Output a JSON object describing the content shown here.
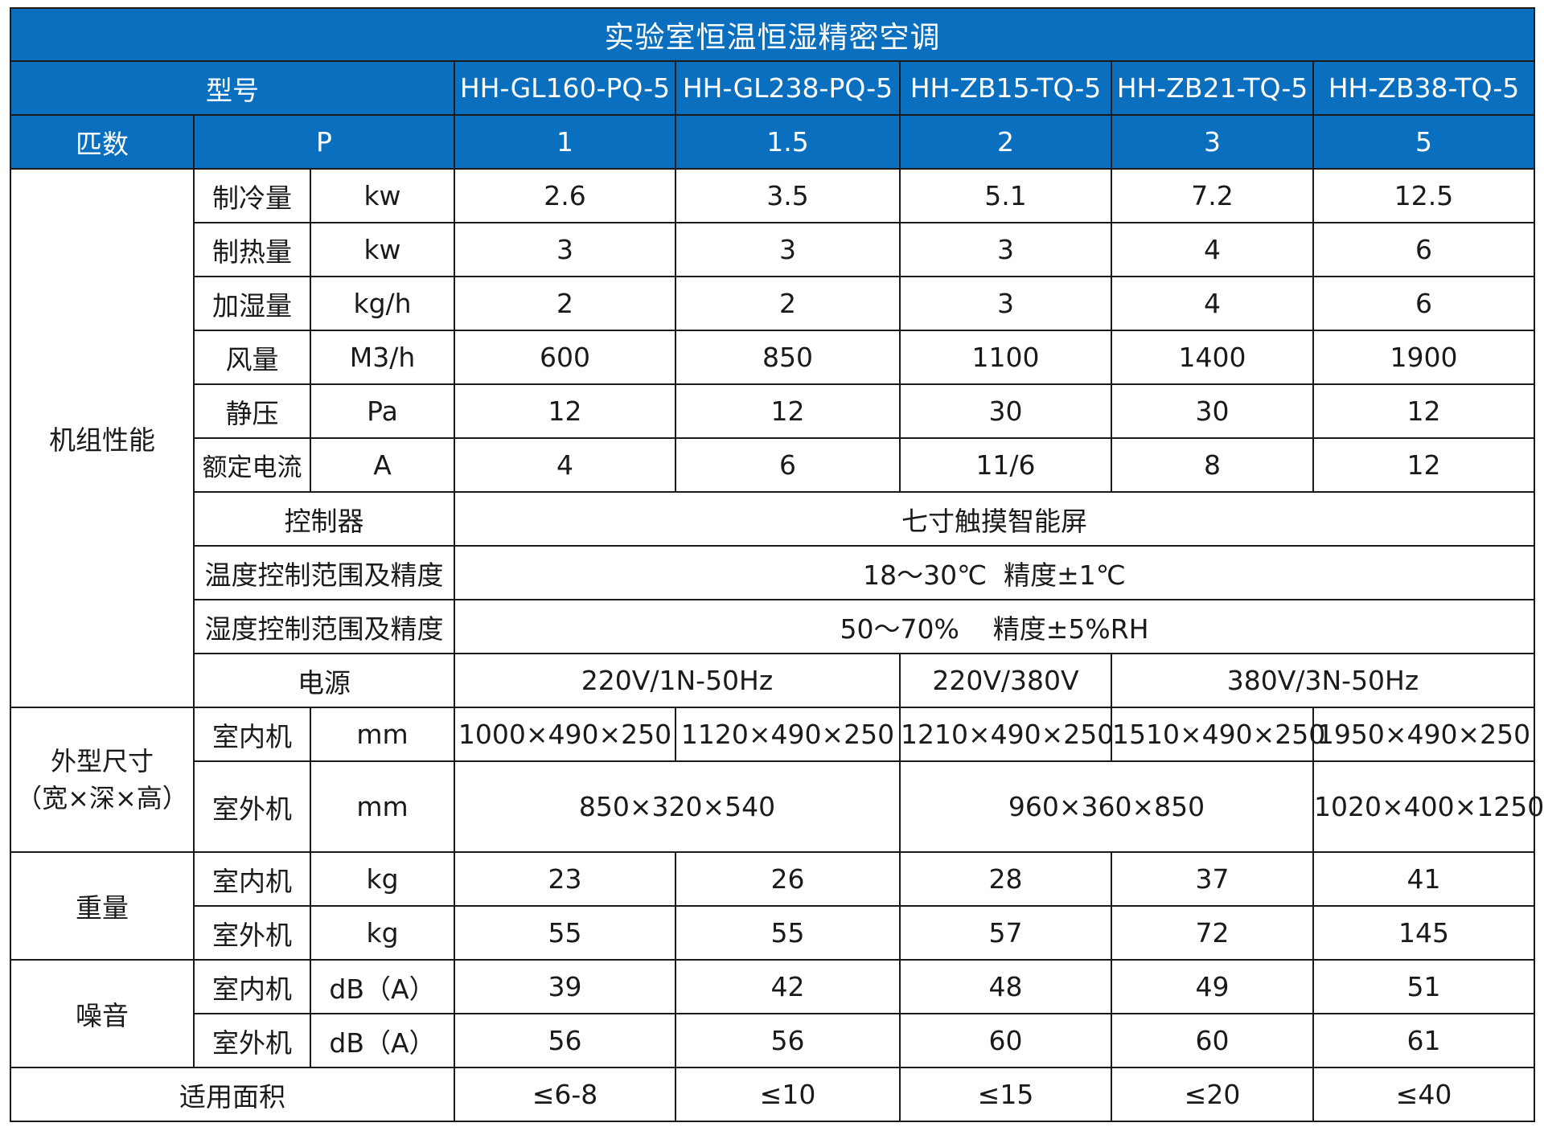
{
  "title": "实验室恒温恒湿精密空调",
  "header": {
    "model_label": "型号",
    "models": [
      "HH-GL160-PQ-5",
      "HH-GL238-PQ-5",
      "HH-ZB15-TQ-5",
      "HH-ZB21-TQ-5",
      "HH-ZB38-TQ-5"
    ],
    "hp_label": "匹数",
    "hp_unit": "P",
    "hp_values": [
      "1",
      "1.5",
      "2",
      "3",
      "5"
    ]
  },
  "performance": {
    "group_label": "机组性能",
    "rows": [
      {
        "name": "制冷量",
        "unit": "kw",
        "values": [
          "2.6",
          "3.5",
          "5.1",
          "7.2",
          "12.5"
        ]
      },
      {
        "name": "制热量",
        "unit": "kw",
        "values": [
          "3",
          "3",
          "3",
          "4",
          "6"
        ]
      },
      {
        "name": "加湿量",
        "unit": "kg/h",
        "values": [
          "2",
          "2",
          "3",
          "4",
          "6"
        ]
      },
      {
        "name": "风量",
        "unit": "M3/h",
        "values": [
          "600",
          "850",
          "1100",
          "1400",
          "1900"
        ]
      },
      {
        "name": "静压",
        "unit": "Pa",
        "values": [
          "12",
          "12",
          "30",
          "30",
          "12"
        ]
      },
      {
        "name": "额定电流",
        "unit": "A",
        "values": [
          "4",
          "6",
          "11/6",
          "8",
          "12"
        ]
      }
    ],
    "controller_label": "控制器",
    "controller_value": "七寸触摸智能屏",
    "temp_label": "温度控制范围及精度",
    "temp_value": "18～30℃  精度±1℃",
    "humid_label": "湿度控制范围及精度",
    "humid_value": "50～70%    精度±5%RH",
    "power_label": "电源",
    "power_values": [
      "220V/1N-50Hz",
      "220V/380V",
      "380V/3N-50Hz"
    ]
  },
  "dimensions": {
    "group_label_line1": "外型尺寸",
    "group_label_line2": "（宽×深×高）",
    "indoor_label": "室内机",
    "indoor_unit": "mm",
    "indoor_values": [
      "1000×490×250",
      "1120×490×250",
      "1210×490×250",
      "1510×490×250",
      "1950×490×250"
    ],
    "outdoor_label": "室外机",
    "outdoor_unit": "mm",
    "outdoor_values": [
      "850×320×540",
      "960×360×850",
      "1020×400×1250"
    ]
  },
  "weight": {
    "group_label": "重量",
    "indoor_label": "室内机",
    "indoor_unit": "kg",
    "indoor_values": [
      "23",
      "26",
      "28",
      "37",
      "41"
    ],
    "outdoor_label": "室外机",
    "outdoor_unit": "kg",
    "outdoor_values": [
      "55",
      "55",
      "57",
      "72",
      "145"
    ]
  },
  "noise": {
    "group_label": "噪音",
    "indoor_label": "室内机",
    "indoor_unit": "dB（A）",
    "indoor_values": [
      "39",
      "42",
      "48",
      "49",
      "51"
    ],
    "outdoor_label": "室外机",
    "outdoor_unit": "dB（A）",
    "outdoor_values": [
      "56",
      "56",
      "60",
      "60",
      "61"
    ]
  },
  "area": {
    "label": "适用面积",
    "values": [
      "≤6-8",
      "≤10",
      "≤15",
      "≤20",
      "≤40"
    ]
  },
  "colors": {
    "header_blue": "#0a6fbf",
    "border": "#1a1a1a"
  }
}
